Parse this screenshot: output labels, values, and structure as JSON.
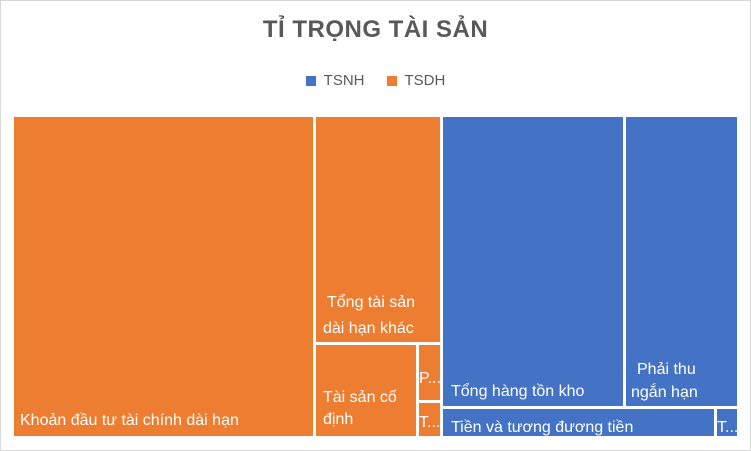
{
  "chart_data": {
    "type": "treemap",
    "title": "TỈ TRỌNG TÀI SẢN",
    "legend": [
      {
        "name": "TSNH",
        "color": "#4472C4"
      },
      {
        "name": "TSDH",
        "color": "#ED7D31"
      }
    ],
    "legend_position": "top",
    "series": [
      {
        "name": "TSDH",
        "color": "#ED7D31",
        "items": [
          {
            "label": "Khoản đầu tư tài chính dài hạn",
            "value": 52
          },
          {
            "label": "Tổng tài sản dài hạn khác",
            "value": 15
          },
          {
            "label": "Tài sản cố định",
            "value": 8.7
          },
          {
            "label": "P...",
            "value": 1.3
          },
          {
            "label": "T...",
            "value": 1.0
          }
        ]
      },
      {
        "name": "TSNH",
        "color": "#4472C4",
        "items": [
          {
            "label": "Tổng hàng tồn kho",
            "value": 27.5
          },
          {
            "label": "Phải thu ngắn hạn",
            "value": 16.8
          },
          {
            "label": "Tiền và tương đương tiền",
            "value": 4.6
          },
          {
            "label": "T...",
            "value": 0.4
          }
        ]
      }
    ]
  }
}
